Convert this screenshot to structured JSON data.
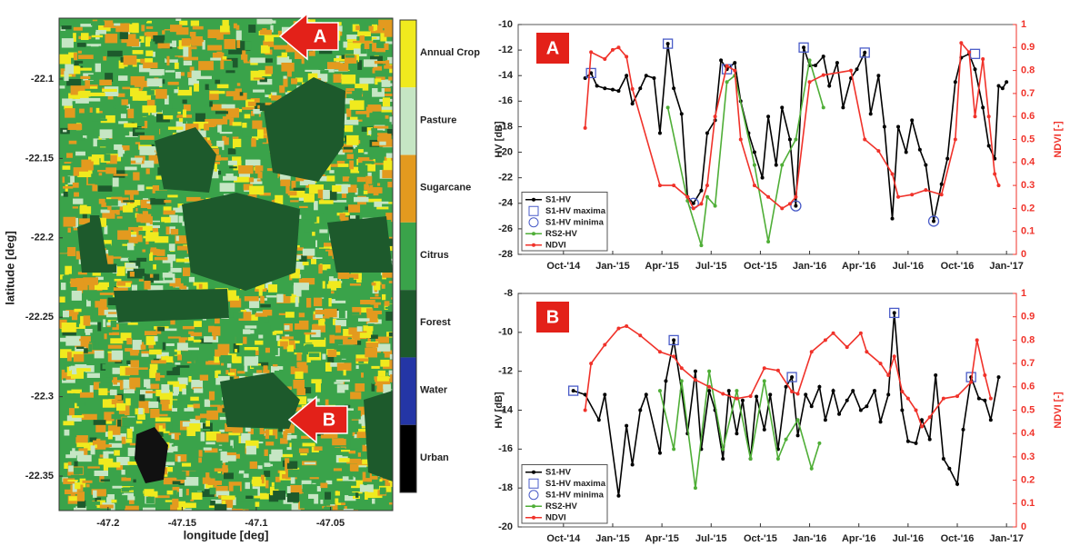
{
  "chart_data": [
    {
      "type": "map",
      "xlabel": "longitude [deg]",
      "ylabel": "latitude [deg]",
      "xlim": [
        -47.233,
        -47.008
      ],
      "ylim": [
        -22.3717,
        -22.0617
      ],
      "xticks": [
        -47.2,
        -47.15,
        -47.1,
        -47.05
      ],
      "yticks": [
        -22.1,
        -22.15,
        -22.2,
        -22.25,
        -22.3,
        -22.35
      ],
      "legend": {
        "categories": [
          "Annual Crop",
          "Pasture",
          "Sugarcane",
          "Citrus",
          "Forest",
          "Water",
          "Urban"
        ],
        "colors": [
          "#f0ea1e",
          "#c6e6c4",
          "#e39a1f",
          "#3aa34a",
          "#1d5a2c",
          "#2436a6",
          "#000000"
        ]
      },
      "annotations": [
        "A",
        "B"
      ]
    },
    {
      "type": "line",
      "panel_label": "A",
      "ylabel": "HV [dB]",
      "y2label": "NDVI [-]",
      "xlim": [
        2014.52,
        2017.05
      ],
      "xticks": [
        {
          "value": 2014.75,
          "label": "Oct-'14"
        },
        {
          "value": 2015,
          "label": "Jan-'15"
        },
        {
          "value": 2015.25,
          "label": "Apr-'15"
        },
        {
          "value": 2015.5,
          "label": "Jul-'15"
        },
        {
          "value": 2015.75,
          "label": "Oct-'15"
        },
        {
          "value": 2016,
          "label": "Jan-'16"
        },
        {
          "value": 2016.25,
          "label": "Apr-'16"
        },
        {
          "value": 2016.5,
          "label": "Jul-'16"
        },
        {
          "value": 2016.75,
          "label": "Oct-'16"
        },
        {
          "value": 2017,
          "label": "Jan-'17"
        }
      ],
      "ylim": [
        -28,
        -10
      ],
      "yticks": [
        -28,
        -26,
        -24,
        -22,
        -20,
        -18,
        -16,
        -14,
        -12,
        -10
      ],
      "y2lim": [
        0,
        1
      ],
      "y2ticks": [
        0,
        0.1,
        0.2,
        0.3,
        0.4,
        0.5,
        0.6,
        0.7,
        0.8,
        0.9,
        1
      ],
      "legend": "lower left",
      "series": [
        {
          "name": "S1-HV",
          "color": "#000000",
          "line": true,
          "marker": "dot",
          "x": [
            2014.86,
            2014.89,
            2014.92,
            2014.96,
            2015.0,
            2015.03,
            2015.07,
            2015.1,
            2015.14,
            2015.17,
            2015.21,
            2015.24,
            2015.28,
            2015.31,
            2015.35,
            2015.38,
            2015.41,
            2015.45,
            2015.48,
            2015.52,
            2015.55,
            2015.58,
            2015.62,
            2015.65,
            2015.69,
            2015.72,
            2015.76,
            2015.79,
            2015.83,
            2015.86,
            2015.9,
            2015.93,
            2015.97,
            2016.0,
            2016.03,
            2016.07,
            2016.1,
            2016.14,
            2016.17,
            2016.21,
            2016.24,
            2016.28,
            2016.31,
            2016.35,
            2016.38,
            2016.42,
            2016.45,
            2016.49,
            2016.52,
            2016.56,
            2016.59,
            2016.63,
            2016.67,
            2016.7,
            2016.74,
            2016.77,
            2016.81,
            2016.84,
            2016.88,
            2016.91,
            2016.94,
            2016.96,
            2016.98,
            2017.0
          ],
          "values": [
            -14.2,
            -13.8,
            -14.8,
            -15.0,
            -15.1,
            -15.2,
            -14.0,
            -16.2,
            -15.0,
            -14.0,
            -14.2,
            -18.5,
            -11.5,
            -15.0,
            -17.0,
            -23.5,
            -24.0,
            -23.0,
            -18.5,
            -17.5,
            -12.8,
            -13.5,
            -13.0,
            -16.0,
            -18.5,
            -20.0,
            -22.0,
            -17.2,
            -21.0,
            -16.5,
            -19.0,
            -24.2,
            -11.8,
            -13.2,
            -13.2,
            -12.5,
            -14.8,
            -13.0,
            -16.5,
            -14.2,
            -13.5,
            -12.2,
            -17.0,
            -14.0,
            -18.0,
            -25.2,
            -18.0,
            -20.0,
            -17.5,
            -19.8,
            -21.0,
            -25.4,
            -22.5,
            -20.5,
            -14.5,
            -12.6,
            -12.3,
            -13.5,
            -16.5,
            -19.5,
            -20.5,
            -14.8,
            -15.0,
            -14.5
          ]
        },
        {
          "name": "S1-HV maxima",
          "color": "#4a5cc8",
          "line": false,
          "marker": "square",
          "x": [
            2014.89,
            2015.28,
            2015.58,
            2015.97,
            2016.28,
            2016.84
          ],
          "values": [
            -13.8,
            -11.5,
            -13.5,
            -11.8,
            -12.2,
            -12.3
          ]
        },
        {
          "name": "S1-HV minima",
          "color": "#4a5cc8",
          "line": false,
          "marker": "circle",
          "x": [
            2015.41,
            2015.93,
            2016.63
          ],
          "values": [
            -24.0,
            -24.2,
            -25.4
          ]
        },
        {
          "name": "RS2-HV",
          "color": "#4fae37",
          "line": true,
          "marker": "dot",
          "x": [
            2015.28,
            2015.38,
            2015.45,
            2015.48,
            2015.52,
            2015.58,
            2015.62,
            2015.72,
            2015.79,
            2015.86,
            2015.93,
            2016.0,
            2016.07
          ],
          "values": [
            -16.5,
            -23.8,
            -27.3,
            -23.5,
            -24.2,
            -14.5,
            -14.0,
            -21.0,
            -27.0,
            -21.0,
            -19.0,
            -12.8,
            -16.5
          ]
        },
        {
          "name": "NDVI",
          "color": "#f0322a",
          "line": true,
          "marker": "dot",
          "axis": "y2",
          "x": [
            2014.86,
            2014.89,
            2014.96,
            2015.0,
            2015.03,
            2015.07,
            2015.1,
            2015.24,
            2015.31,
            2015.38,
            2015.41,
            2015.45,
            2015.48,
            2015.52,
            2015.58,
            2015.62,
            2015.65,
            2015.72,
            2015.79,
            2015.86,
            2015.9,
            2015.93,
            2016.0,
            2016.07,
            2016.21,
            2016.28,
            2016.35,
            2016.42,
            2016.45,
            2016.52,
            2016.59,
            2016.67,
            2016.74,
            2016.77,
            2016.81,
            2016.84,
            2016.88,
            2016.91,
            2016.94,
            2016.96
          ],
          "values": [
            0.55,
            0.88,
            0.85,
            0.89,
            0.9,
            0.86,
            0.72,
            0.3,
            0.3,
            0.25,
            0.2,
            0.22,
            0.3,
            0.6,
            0.82,
            0.8,
            0.5,
            0.3,
            0.25,
            0.2,
            0.22,
            0.25,
            0.75,
            0.78,
            0.8,
            0.5,
            0.45,
            0.35,
            0.25,
            0.26,
            0.28,
            0.26,
            0.5,
            0.92,
            0.88,
            0.6,
            0.85,
            0.6,
            0.35,
            0.3
          ]
        }
      ]
    },
    {
      "type": "line",
      "panel_label": "B",
      "ylabel": "HV [dB]",
      "y2label": "NDVI [-]",
      "xlim": [
        2014.52,
        2017.05
      ],
      "xticks": [
        {
          "value": 2014.75,
          "label": "Oct-'14"
        },
        {
          "value": 2015,
          "label": "Jan-'15"
        },
        {
          "value": 2015.25,
          "label": "Apr-'15"
        },
        {
          "value": 2015.5,
          "label": "Jul-'15"
        },
        {
          "value": 2015.75,
          "label": "Oct-'15"
        },
        {
          "value": 2016,
          "label": "Jan-'16"
        },
        {
          "value": 2016.25,
          "label": "Apr-'16"
        },
        {
          "value": 2016.5,
          "label": "Jul-'16"
        },
        {
          "value": 2016.75,
          "label": "Oct-'16"
        },
        {
          "value": 2017,
          "label": "Jan-'17"
        }
      ],
      "ylim": [
        -20,
        -8
      ],
      "yticks": [
        -20,
        -18,
        -16,
        -14,
        -12,
        -10,
        -8
      ],
      "y2lim": [
        0,
        1
      ],
      "y2ticks": [
        0,
        0.1,
        0.2,
        0.3,
        0.4,
        0.5,
        0.6,
        0.7,
        0.8,
        0.9,
        1
      ],
      "legend": "lower left",
      "series": [
        {
          "name": "S1-HV",
          "color": "#000000",
          "line": true,
          "marker": "dot",
          "x": [
            2014.8,
            2014.86,
            2014.93,
            2014.96,
            2015.03,
            2015.07,
            2015.1,
            2015.14,
            2015.17,
            2015.24,
            2015.27,
            2015.31,
            2015.35,
            2015.38,
            2015.42,
            2015.45,
            2015.49,
            2015.52,
            2015.56,
            2015.59,
            2015.63,
            2015.66,
            2015.7,
            2015.73,
            2015.77,
            2015.8,
            2015.84,
            2015.88,
            2015.91,
            2015.94,
            2015.98,
            2016.01,
            2016.05,
            2016.08,
            2016.12,
            2016.15,
            2016.19,
            2016.22,
            2016.26,
            2016.29,
            2016.33,
            2016.36,
            2016.4,
            2016.43,
            2016.47,
            2016.5,
            2016.54,
            2016.57,
            2016.61,
            2016.64,
            2016.68,
            2016.71,
            2016.75,
            2016.78,
            2016.82,
            2016.86,
            2016.89,
            2016.92,
            2016.96
          ],
          "values": [
            -13.0,
            -13.2,
            -14.5,
            -13.2,
            -18.4,
            -14.8,
            -16.8,
            -14.0,
            -13.2,
            -16.2,
            -12.5,
            -10.4,
            -13.0,
            -15.2,
            -12.0,
            -16.0,
            -13.0,
            -14.0,
            -16.5,
            -13.0,
            -15.2,
            -13.5,
            -16.5,
            -13.3,
            -15.0,
            -13.2,
            -16.0,
            -12.8,
            -12.3,
            -15.3,
            -13.2,
            -13.8,
            -12.8,
            -14.5,
            -13.0,
            -14.2,
            -13.5,
            -13.0,
            -14.0,
            -13.8,
            -13.0,
            -14.6,
            -13.2,
            -9.0,
            -14.0,
            -15.6,
            -15.7,
            -14.5,
            -15.5,
            -12.2,
            -16.5,
            -17.0,
            -17.8,
            -15.0,
            -12.3,
            -13.4,
            -13.5,
            -14.5,
            -12.3
          ]
        },
        {
          "name": "S1-HV maxima",
          "color": "#4a5cc8",
          "line": false,
          "marker": "square",
          "x": [
            2014.8,
            2015.31,
            2015.91,
            2016.43,
            2016.82
          ],
          "values": [
            -13.0,
            -10.4,
            -12.3,
            -9.0,
            -12.3
          ]
        },
        {
          "name": "S1-HV minima",
          "color": "#4a5cc8",
          "line": false,
          "marker": "circle",
          "x": [],
          "values": []
        },
        {
          "name": "RS2-HV",
          "color": "#4fae37",
          "line": true,
          "marker": "dot",
          "x": [
            2015.24,
            2015.31,
            2015.35,
            2015.42,
            2015.49,
            2015.56,
            2015.63,
            2015.7,
            2015.77,
            2015.84,
            2015.88,
            2015.94,
            2016.01,
            2016.05
          ],
          "values": [
            -13.0,
            -16.0,
            -12.5,
            -18.0,
            -12.0,
            -16.0,
            -13.0,
            -16.5,
            -12.5,
            -16.5,
            -15.5,
            -14.5,
            -17.0,
            -15.7
          ]
        },
        {
          "name": "NDVI",
          "color": "#f0322a",
          "line": true,
          "marker": "dot",
          "axis": "y2",
          "x": [
            2014.86,
            2014.89,
            2014.96,
            2015.03,
            2015.07,
            2015.14,
            2015.24,
            2015.31,
            2015.35,
            2015.42,
            2015.49,
            2015.56,
            2015.63,
            2015.7,
            2015.77,
            2015.84,
            2015.91,
            2015.94,
            2016.01,
            2016.08,
            2016.12,
            2016.19,
            2016.26,
            2016.29,
            2016.36,
            2016.4,
            2016.43,
            2016.47,
            2016.5,
            2016.54,
            2016.57,
            2016.61,
            2016.68,
            2016.75,
            2016.82,
            2016.85,
            2016.89,
            2016.92
          ],
          "values": [
            0.5,
            0.7,
            0.78,
            0.85,
            0.86,
            0.82,
            0.75,
            0.73,
            0.68,
            0.63,
            0.6,
            0.57,
            0.55,
            0.56,
            0.68,
            0.67,
            0.58,
            0.57,
            0.75,
            0.8,
            0.83,
            0.77,
            0.83,
            0.75,
            0.7,
            0.65,
            0.73,
            0.58,
            0.55,
            0.5,
            0.43,
            0.47,
            0.55,
            0.56,
            0.62,
            0.8,
            0.65,
            0.55
          ]
        }
      ]
    }
  ]
}
